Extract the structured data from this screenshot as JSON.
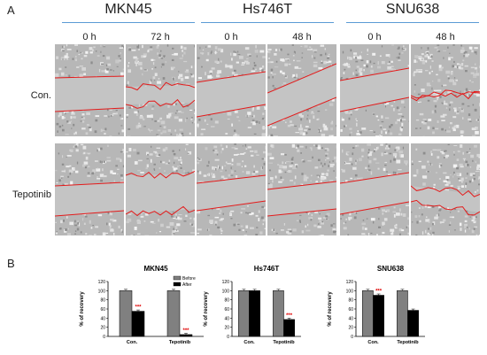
{
  "figure": {
    "panel_a_label": "A",
    "panel_b_label": "B",
    "cell_lines": [
      "MKN45",
      "Hs746T",
      "SNU638"
    ],
    "time_points": [
      [
        "0 h",
        "72 h"
      ],
      [
        "0 h",
        "48 h"
      ],
      [
        "0 h",
        "48 h"
      ]
    ],
    "row_labels": [
      "Con.",
      "Tepotinib"
    ]
  },
  "chart_data": [
    {
      "type": "bar",
      "title": "MKN45",
      "ylabel": "% of recovery",
      "ylim": [
        0,
        120
      ],
      "yticks": [
        0,
        20,
        40,
        60,
        80,
        100,
        120
      ],
      "categories": [
        "Con.",
        "Tepotinib"
      ],
      "series": [
        {
          "name": "Before",
          "color": "#808080",
          "values": [
            100,
            100
          ]
        },
        {
          "name": "After",
          "color": "#000000",
          "values": [
            55,
            4
          ]
        }
      ],
      "significance": [
        "***",
        "***"
      ],
      "legend": "top-right",
      "colors": {
        "before": "#808080",
        "after": "#000000",
        "significance": "#e00000"
      }
    },
    {
      "type": "bar",
      "title": "Hs746T",
      "ylabel": "% of recovery",
      "ylim": [
        0,
        120
      ],
      "yticks": [
        0,
        20,
        40,
        60,
        80,
        100,
        120
      ],
      "categories": [
        "Con.",
        "Tepotinib"
      ],
      "series": [
        {
          "name": "Before",
          "color": "#808080",
          "values": [
            100,
            100
          ]
        },
        {
          "name": "After",
          "color": "#000000",
          "values": [
            100,
            37
          ]
        }
      ],
      "significance": [
        "",
        "***"
      ],
      "legend": "none",
      "colors": {
        "before": "#808080",
        "after": "#000000",
        "significance": "#e00000"
      }
    },
    {
      "type": "bar",
      "title": "SNU638",
      "ylabel": "% of recovery",
      "ylim": [
        0,
        120
      ],
      "yticks": [
        0,
        20,
        40,
        60,
        80,
        100,
        120
      ],
      "categories": [
        "Con.",
        "Tepotinib"
      ],
      "series": [
        {
          "name": "Before",
          "color": "#808080",
          "values": [
            100,
            100
          ]
        },
        {
          "name": "After",
          "color": "#000000",
          "values": [
            90,
            57
          ]
        }
      ],
      "significance": [
        "***",
        ""
      ],
      "legend": "none",
      "colors": {
        "before": "#808080",
        "after": "#000000",
        "significance": "#e00000"
      }
    }
  ]
}
